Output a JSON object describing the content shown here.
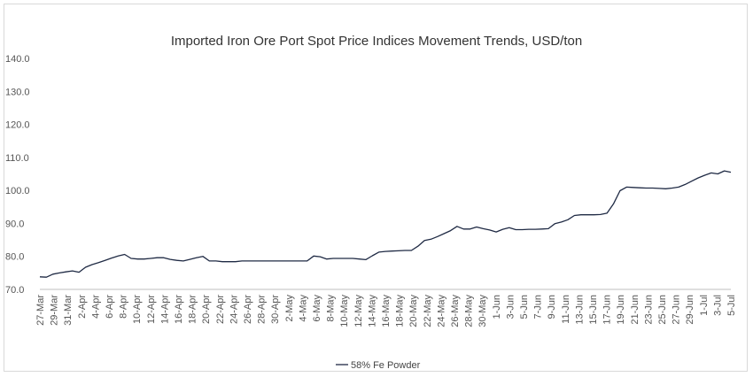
{
  "chart_data": {
    "type": "line",
    "title": "Imported Iron Ore Port Spot Price Indices Movement Trends, USD/ton",
    "ylim": [
      70,
      140
    ],
    "yticks": [
      "70.0",
      "80.0",
      "90.0",
      "100.0",
      "110.0",
      "120.0",
      "130.0",
      "140.0"
    ],
    "grid": false,
    "legend": "bottom",
    "x_tick_labels": [
      "27-Mar",
      "29-Mar",
      "31-Mar",
      "2-Apr",
      "4-Apr",
      "6-Apr",
      "8-Apr",
      "10-Apr",
      "12-Apr",
      "14-Apr",
      "16-Apr",
      "18-Apr",
      "20-Apr",
      "22-Apr",
      "24-Apr",
      "26-Apr",
      "28-Apr",
      "30-Apr",
      "2-May",
      "4-May",
      "6-May",
      "8-May",
      "10-May",
      "12-May",
      "14-May",
      "16-May",
      "18-May",
      "20-May",
      "22-May",
      "24-May",
      "26-May",
      "28-May",
      "30-May",
      "1-Jun",
      "3-Jun",
      "5-Jun",
      "7-Jun",
      "9-Jun",
      "11-Jun",
      "13-Jun",
      "15-Jun",
      "17-Jun",
      "19-Jun",
      "21-Jun",
      "23-Jun",
      "25-Jun",
      "27-Jun",
      "29-Jun",
      "1-Jul",
      "3-Jul",
      "5-Jul"
    ],
    "series": [
      {
        "name": "58% Fe Powder",
        "color": "#1f2a44",
        "values": [
          73.8,
          73.7,
          74.6,
          75.0,
          75.3,
          75.6,
          75.2,
          76.7,
          77.5,
          78.1,
          78.8,
          79.5,
          80.1,
          80.6,
          79.4,
          79.2,
          79.2,
          79.4,
          79.6,
          79.6,
          79.1,
          78.8,
          78.6,
          79.1,
          79.6,
          80.0,
          78.6,
          78.6,
          78.4,
          78.4,
          78.4,
          78.6,
          78.6,
          78.6,
          78.6,
          78.6,
          78.6,
          78.6,
          78.6,
          78.6,
          78.6,
          78.6,
          80.1,
          79.9,
          79.2,
          79.4,
          79.4,
          79.4,
          79.4,
          79.2,
          79.0,
          80.2,
          81.3,
          81.5,
          81.6,
          81.7,
          81.8,
          81.8,
          83.1,
          84.8,
          85.2,
          86.0,
          86.9,
          87.8,
          89.1,
          88.3,
          88.3,
          88.9,
          88.4,
          88.0,
          87.4,
          88.2,
          88.7,
          88.1,
          88.1,
          88.2,
          88.2,
          88.3,
          88.4,
          89.9,
          90.4,
          91.1,
          92.4,
          92.6,
          92.6,
          92.6,
          92.7,
          93.1,
          95.9,
          99.9,
          101.0,
          100.9,
          100.8,
          100.7,
          100.7,
          100.6,
          100.5,
          100.7,
          101.0,
          101.8,
          102.8,
          103.8,
          104.6,
          105.3,
          105.0,
          105.9,
          105.5
        ]
      }
    ]
  }
}
